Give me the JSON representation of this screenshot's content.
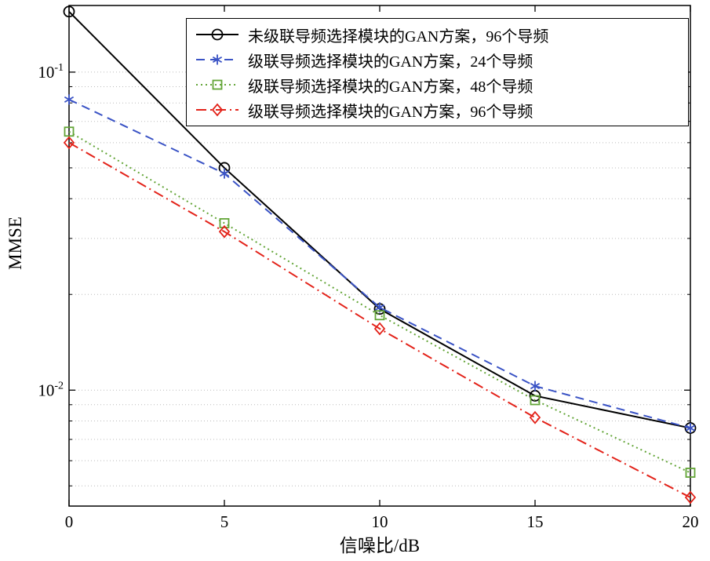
{
  "chart_data": {
    "type": "line",
    "title": "",
    "xlabel": "信噪比/dB",
    "ylabel": "MMSE",
    "yscale": "log",
    "xlim": [
      0,
      20
    ],
    "ylim": [
      0.00432,
      0.162
    ],
    "x": [
      0,
      5,
      10,
      15,
      20
    ],
    "xticks": [
      "0",
      "5",
      "10",
      "15",
      "20"
    ],
    "yticks": [
      {
        "value": 0.1,
        "base": "10",
        "exp": "-1"
      },
      {
        "value": 0.01,
        "base": "10",
        "exp": "-2"
      }
    ],
    "minor_gridlines": [
      0.005,
      0.006,
      0.007,
      0.008,
      0.009,
      0.02,
      0.03,
      0.04,
      0.05,
      0.06,
      0.07,
      0.08,
      0.09
    ],
    "major_gridlines": [
      0.01,
      0.1
    ],
    "grid": "dotted-horizontal",
    "legend_position": "top-right-inside",
    "series": [
      {
        "name": "未级联导频选择模块的GAN方案，96个导频",
        "color": "#000000",
        "line": "solid",
        "marker": "circle",
        "values": [
          0.155,
          0.05,
          0.018,
          0.0096,
          0.0076
        ]
      },
      {
        "name": "级联导频选择模块的GAN方案，24个导频",
        "color": "#3a53c5",
        "line": "dashed",
        "marker": "asterisk",
        "values": [
          0.082,
          0.048,
          0.0182,
          0.0103,
          0.0076
        ]
      },
      {
        "name": "级联导频选择模块的GAN方案，48个导频",
        "color": "#63a537",
        "line": "dotted",
        "marker": "square",
        "values": [
          0.065,
          0.0335,
          0.0172,
          0.0093,
          0.0055
        ]
      },
      {
        "name": "级联导频选择模块的GAN方案，96个导频",
        "color": "#e32219",
        "line": "dashdot",
        "marker": "diamond",
        "values": [
          0.06,
          0.0315,
          0.0156,
          0.0082,
          0.0046
        ]
      }
    ]
  }
}
